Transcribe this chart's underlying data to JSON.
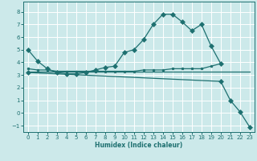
{
  "background_color": "#cce9ea",
  "grid_color": "#ffffff",
  "line_color": "#1e7070",
  "xlabel": "Humidex (Indice chaleur)",
  "ylim": [
    -1.5,
    8.8
  ],
  "xlim": [
    -0.5,
    23.5
  ],
  "yticks": [
    -1,
    0,
    1,
    2,
    3,
    4,
    5,
    6,
    7,
    8
  ],
  "xticks": [
    0,
    1,
    2,
    3,
    4,
    5,
    6,
    7,
    8,
    9,
    10,
    11,
    12,
    13,
    14,
    15,
    16,
    17,
    18,
    19,
    20,
    21,
    22,
    23
  ],
  "curves": [
    {
      "x": [
        0,
        1,
        2,
        3,
        4,
        5,
        6,
        7,
        8,
        9,
        10,
        11,
        12,
        13,
        14,
        15,
        16,
        17,
        18,
        19,
        20
      ],
      "y": [
        5.0,
        4.1,
        3.5,
        3.2,
        3.1,
        3.1,
        3.2,
        3.4,
        3.6,
        3.7,
        4.8,
        5.0,
        5.8,
        7.0,
        7.8,
        7.8,
        7.2,
        6.5,
        7.0,
        5.3,
        3.9
      ],
      "marker": "D",
      "markersize": 3
    },
    {
      "x": [
        0,
        1,
        2,
        3,
        4,
        5,
        6,
        7,
        8,
        9,
        10,
        11,
        12,
        13,
        14,
        15,
        16,
        17,
        18,
        19,
        20
      ],
      "y": [
        3.5,
        3.4,
        3.4,
        3.3,
        3.3,
        3.3,
        3.3,
        3.3,
        3.3,
        3.3,
        3.3,
        3.3,
        3.4,
        3.4,
        3.4,
        3.5,
        3.5,
        3.5,
        3.5,
        3.7,
        3.9
      ],
      "marker": "o",
      "markersize": 2
    },
    {
      "x": [
        0,
        23
      ],
      "y": [
        3.3,
        3.3
      ],
      "marker": null,
      "markersize": 0
    },
    {
      "x": [
        0,
        20,
        21,
        22,
        23
      ],
      "y": [
        3.2,
        2.5,
        1.0,
        0.1,
        -1.1
      ],
      "marker": "D",
      "markersize": 3
    }
  ]
}
